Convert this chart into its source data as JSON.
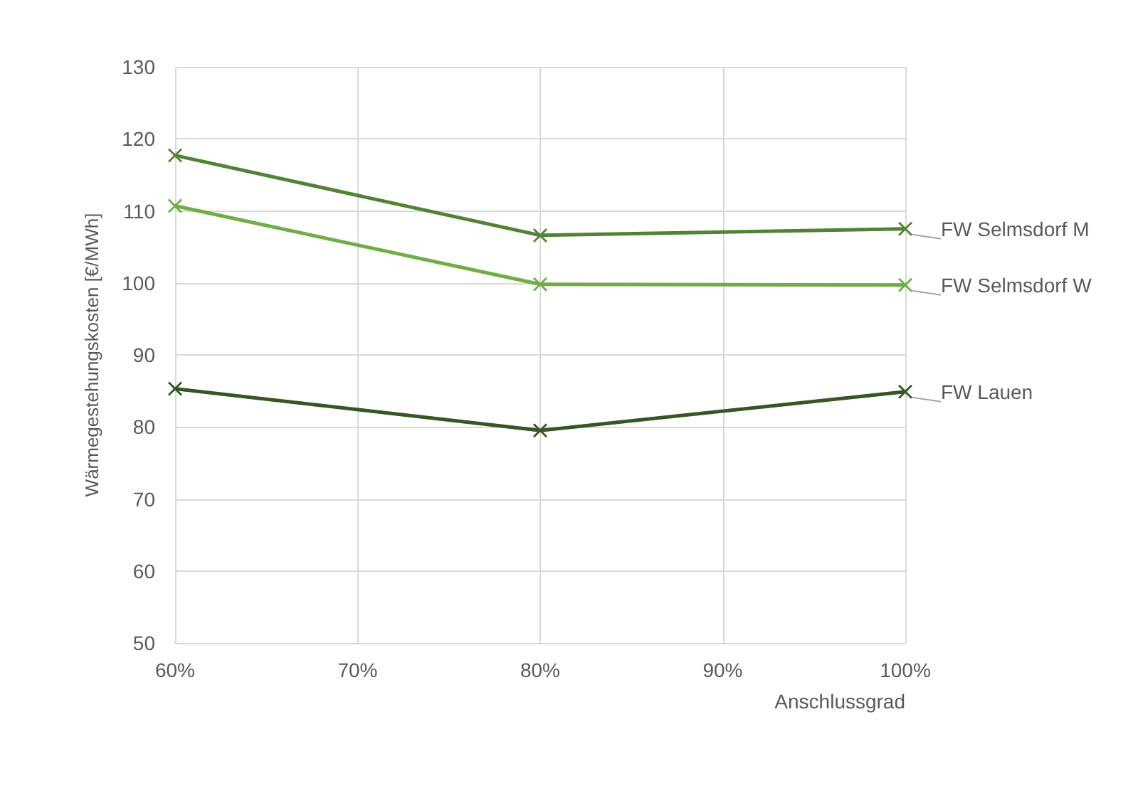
{
  "chart_data": {
    "type": "line",
    "xlabel": "Anschlussgrad",
    "ylabel": "Wärmegestehungskosten [€/MWh]",
    "x": [
      60,
      80,
      100
    ],
    "series": [
      {
        "name": "FW Selmsdorf M",
        "color": "#548235",
        "values": [
          117.7,
          106.6,
          107.5
        ]
      },
      {
        "name": "FW Selmsdorf W",
        "color": "#70ad47",
        "values": [
          110.7,
          99.8,
          99.7
        ]
      },
      {
        "name": "FW Lauen",
        "color": "#375623",
        "values": [
          85.3,
          79.5,
          84.9
        ]
      }
    ],
    "xlim": [
      60,
      100
    ],
    "xticks": [
      {
        "value": 60,
        "label": "60%"
      },
      {
        "value": 70,
        "label": "70%"
      },
      {
        "value": 80,
        "label": "80%"
      },
      {
        "value": 90,
        "label": "90%"
      },
      {
        "value": 100,
        "label": "100%"
      }
    ],
    "ylim": [
      50,
      130
    ],
    "yticks": [
      50,
      60,
      70,
      80,
      90,
      100,
      110,
      120,
      130
    ],
    "grid": true,
    "legend": false,
    "marker": "cross",
    "line_style": "solid"
  }
}
